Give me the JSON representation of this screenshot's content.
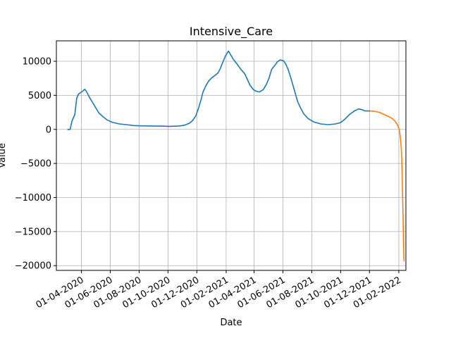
{
  "chart_data": {
    "type": "line",
    "title": "Intensive_Care",
    "xlabel": "Date",
    "ylabel": "Value",
    "x_ticks": [
      "01-04-2020",
      "01-06-2020",
      "01-08-2020",
      "01-10-2020",
      "01-12-2020",
      "01-02-2021",
      "01-04-2021",
      "01-06-2021",
      "01-08-2021",
      "01-10-2021",
      "01-12-2021",
      "01-02-2022"
    ],
    "y_ticks": [
      10000,
      5000,
      0,
      -5000,
      -10000,
      -15000,
      -20000
    ],
    "ylim": [
      -20700,
      13000
    ],
    "xlim": [
      "2020-02-08",
      "2022-02-16"
    ],
    "grid": true,
    "series": [
      {
        "color": "#1f77b4",
        "points": [
          [
            "2020-03-03",
            0
          ],
          [
            "2020-03-08",
            0
          ],
          [
            "2020-03-12",
            1200
          ],
          [
            "2020-03-18",
            2200
          ],
          [
            "2020-03-22",
            4600
          ],
          [
            "2020-03-26",
            5200
          ],
          [
            "2020-04-01",
            5500
          ],
          [
            "2020-04-05",
            5700
          ],
          [
            "2020-04-08",
            5900
          ],
          [
            "2020-04-12",
            5500
          ],
          [
            "2020-04-18",
            4700
          ],
          [
            "2020-04-25",
            3900
          ],
          [
            "2020-05-01",
            3200
          ],
          [
            "2020-05-08",
            2400
          ],
          [
            "2020-05-16",
            1900
          ],
          [
            "2020-05-25",
            1400
          ],
          [
            "2020-06-05",
            1050
          ],
          [
            "2020-06-20",
            800
          ],
          [
            "2020-07-05",
            700
          ],
          [
            "2020-07-20",
            560
          ],
          [
            "2020-08-05",
            520
          ],
          [
            "2020-08-25",
            500
          ],
          [
            "2020-09-15",
            480
          ],
          [
            "2020-10-05",
            450
          ],
          [
            "2020-10-25",
            500
          ],
          [
            "2020-11-05",
            620
          ],
          [
            "2020-11-15",
            900
          ],
          [
            "2020-11-22",
            1300
          ],
          [
            "2020-11-29",
            2000
          ],
          [
            "2020-12-05",
            3200
          ],
          [
            "2020-12-10",
            4400
          ],
          [
            "2020-12-14",
            5500
          ],
          [
            "2020-12-20",
            6400
          ],
          [
            "2020-12-26",
            7100
          ],
          [
            "2021-01-02",
            7600
          ],
          [
            "2021-01-08",
            7900
          ],
          [
            "2021-01-15",
            8300
          ],
          [
            "2021-01-20",
            9000
          ],
          [
            "2021-01-25",
            9900
          ],
          [
            "2021-01-30",
            10700
          ],
          [
            "2021-02-03",
            11200
          ],
          [
            "2021-02-06",
            11500
          ],
          [
            "2021-02-10",
            11000
          ],
          [
            "2021-02-16",
            10300
          ],
          [
            "2021-02-24",
            9600
          ],
          [
            "2021-03-04",
            8800
          ],
          [
            "2021-03-12",
            8200
          ],
          [
            "2021-03-18",
            7300
          ],
          [
            "2021-03-24",
            6400
          ],
          [
            "2021-03-31",
            5800
          ],
          [
            "2021-04-06",
            5600
          ],
          [
            "2021-04-12",
            5500
          ],
          [
            "2021-04-20",
            5800
          ],
          [
            "2021-04-27",
            6600
          ],
          [
            "2021-05-03",
            7600
          ],
          [
            "2021-05-08",
            8800
          ],
          [
            "2021-05-15",
            9400
          ],
          [
            "2021-05-20",
            9900
          ],
          [
            "2021-05-26",
            10200
          ],
          [
            "2021-06-02",
            10100
          ],
          [
            "2021-06-07",
            9600
          ],
          [
            "2021-06-12",
            8800
          ],
          [
            "2021-06-18",
            7500
          ],
          [
            "2021-06-25",
            5800
          ],
          [
            "2021-07-02",
            4100
          ],
          [
            "2021-07-08",
            3200
          ],
          [
            "2021-07-15",
            2300
          ],
          [
            "2021-07-24",
            1600
          ],
          [
            "2021-08-05",
            1100
          ],
          [
            "2021-08-20",
            800
          ],
          [
            "2021-09-05",
            700
          ],
          [
            "2021-09-20",
            800
          ],
          [
            "2021-10-01",
            1000
          ],
          [
            "2021-10-10",
            1500
          ],
          [
            "2021-10-20",
            2200
          ],
          [
            "2021-10-30",
            2700
          ],
          [
            "2021-11-08",
            3000
          ],
          [
            "2021-11-15",
            2900
          ],
          [
            "2021-11-22",
            2700
          ],
          [
            "2021-12-02",
            2700
          ]
        ]
      },
      {
        "color": "#ff7f0e",
        "points": [
          [
            "2021-12-02",
            2700
          ],
          [
            "2021-12-12",
            2650
          ],
          [
            "2021-12-22",
            2500
          ],
          [
            "2022-01-01",
            2200
          ],
          [
            "2022-01-10",
            1900
          ],
          [
            "2022-01-18",
            1600
          ],
          [
            "2022-01-24",
            1200
          ],
          [
            "2022-01-29",
            700
          ],
          [
            "2022-02-02",
            0
          ],
          [
            "2022-02-04",
            -1000
          ],
          [
            "2022-02-06",
            -2500
          ],
          [
            "2022-02-07",
            -4000
          ],
          [
            "2022-02-08",
            -6500
          ],
          [
            "2022-02-09",
            -9500
          ],
          [
            "2022-02-10",
            -13000
          ],
          [
            "2022-02-11",
            -16500
          ],
          [
            "2022-02-12",
            -19300
          ]
        ]
      }
    ]
  }
}
